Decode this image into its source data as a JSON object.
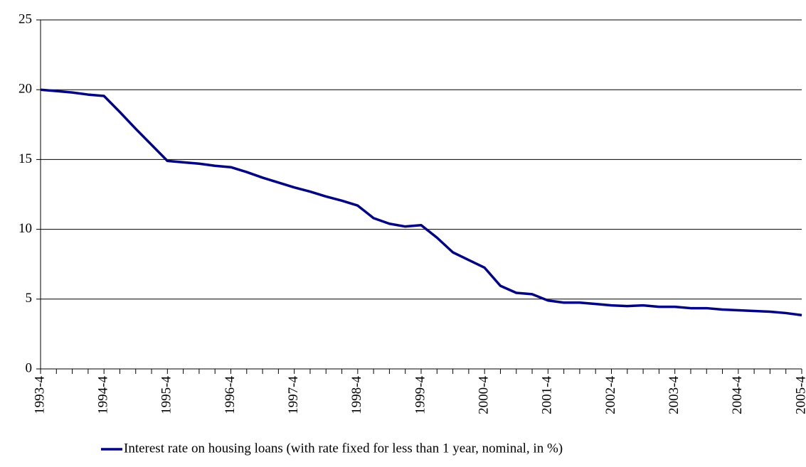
{
  "chart_data": {
    "type": "line",
    "categories": [
      "1993-4",
      null,
      null,
      null,
      "1994-4",
      null,
      null,
      null,
      "1995-4",
      null,
      null,
      null,
      "1996-4",
      null,
      null,
      null,
      "1997-4",
      null,
      null,
      null,
      "1998-4",
      null,
      null,
      null,
      "1999-4",
      null,
      null,
      null,
      "2000-4",
      null,
      null,
      null,
      "2001-4",
      null,
      null,
      null,
      "2002-4",
      null,
      null,
      null,
      "2003-4",
      null,
      null,
      null,
      "2004-4",
      null,
      null,
      null,
      "2005-4"
    ],
    "series": [
      {
        "name": "Interest rate on housing loans (with rate fixed for less than 1 year, nominal, in %)",
        "color": "#000080",
        "values": [
          20.0,
          19.9,
          19.8,
          19.65,
          19.55,
          18.4,
          17.2,
          16.05,
          14.9,
          14.8,
          14.7,
          14.55,
          14.45,
          14.1,
          13.7,
          13.35,
          13.0,
          12.7,
          12.35,
          12.05,
          11.7,
          10.8,
          10.4,
          10.2,
          10.3,
          9.4,
          8.35,
          7.8,
          7.25,
          5.95,
          5.45,
          5.35,
          4.9,
          4.75,
          4.75,
          4.65,
          4.55,
          4.5,
          4.55,
          4.45,
          4.45,
          4.35,
          4.35,
          4.25,
          4.2,
          4.15,
          4.1,
          4.0,
          3.85
        ]
      }
    ],
    "ylim": [
      0,
      25
    ],
    "yticks": [
      0,
      5,
      10,
      15,
      20,
      25
    ],
    "grid": true,
    "legend": "bottom"
  }
}
